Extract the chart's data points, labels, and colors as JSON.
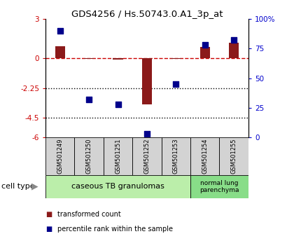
{
  "title": "GDS4256 / Hs.50743.0.A1_3p_at",
  "samples": [
    "GSM501249",
    "GSM501250",
    "GSM501251",
    "GSM501252",
    "GSM501253",
    "GSM501254",
    "GSM501255"
  ],
  "transformed_counts": [
    0.9,
    -0.05,
    -0.1,
    -3.5,
    -0.05,
    0.85,
    1.15
  ],
  "percentile_ranks": [
    90,
    32,
    28,
    3,
    45,
    78,
    82
  ],
  "ylim_left": [
    -6,
    3
  ],
  "ylim_right": [
    0,
    100
  ],
  "yticks_left": [
    3,
    0,
    -2.25,
    -4.5,
    -6
  ],
  "yticks_right": [
    100,
    75,
    50,
    25,
    0
  ],
  "ytick_labels_left": [
    "3",
    "0",
    "-2.25",
    "-4.5",
    "-6"
  ],
  "ytick_labels_right": [
    "100%",
    "75",
    "50",
    "25",
    "0"
  ],
  "hlines": [
    -2.25,
    -4.5
  ],
  "dashed_hline": 0,
  "bar_color": "#8B1A1A",
  "dot_color": "#00008B",
  "bar_width": 0.35,
  "dot_size": 40,
  "group1_label": "caseous TB granulomas",
  "group1_color": "#AAEEA A",
  "group2_label": "normal lung\nparenchyma",
  "group2_color": "#66CC66",
  "cell_type_label": "cell type",
  "legend_bar_label": "transformed count",
  "legend_dot_label": "percentile rank within the sample",
  "dashed_line_color": "#CC0000",
  "left_tick_color": "#CC0000",
  "right_tick_color": "#0000CC",
  "sample_box_color": "#D3D3D3",
  "group1_light": "#BBEEBB",
  "group2_dark": "#55BB55"
}
